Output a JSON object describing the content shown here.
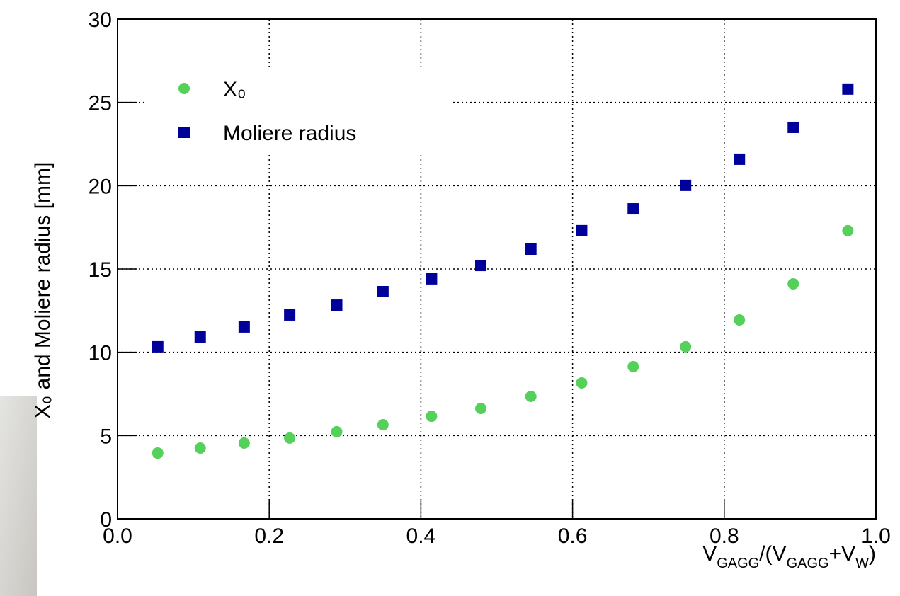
{
  "chart_data": {
    "type": "scatter",
    "x_label_parts": [
      "V",
      "GAGG",
      "/(V",
      "GAGG",
      "+V",
      "W",
      ")"
    ],
    "y_label": "X₀ and Moliere radius [mm]",
    "xlim": [
      0,
      1
    ],
    "ylim": [
      0,
      30
    ],
    "xticks": [
      {
        "value": 0,
        "label": "0.0"
      },
      0.2,
      0.4,
      0.6,
      0.8,
      {
        "value": 1,
        "label": "1.0"
      }
    ],
    "yticks": [
      0,
      5,
      10,
      15,
      20,
      25,
      30
    ],
    "grid": true,
    "legend": "top-left",
    "series": [
      {
        "name": "X₀",
        "color": "#55d05a",
        "marker": "circle",
        "x": [
          0.053,
          0.109,
          0.167,
          0.227,
          0.289,
          0.35,
          0.414,
          0.479,
          0.545,
          0.612,
          0.68,
          0.749,
          0.82,
          0.891,
          0.963
        ],
        "values": [
          3.95,
          4.25,
          4.55,
          4.85,
          5.23,
          5.65,
          6.16,
          6.63,
          7.35,
          8.16,
          9.14,
          10.33,
          11.94,
          14.11,
          17.3
        ]
      },
      {
        "name": "Moliere radius",
        "color": "#00009a",
        "marker": "square",
        "x": [
          0.053,
          0.109,
          0.167,
          0.227,
          0.289,
          0.35,
          0.414,
          0.479,
          0.545,
          0.612,
          0.68,
          0.749,
          0.82,
          0.891,
          0.963
        ],
        "values": [
          10.33,
          10.92,
          11.52,
          12.24,
          12.83,
          13.64,
          14.41,
          15.21,
          16.19,
          17.3,
          18.61,
          20.02,
          21.59,
          23.5,
          25.8
        ]
      }
    ]
  }
}
